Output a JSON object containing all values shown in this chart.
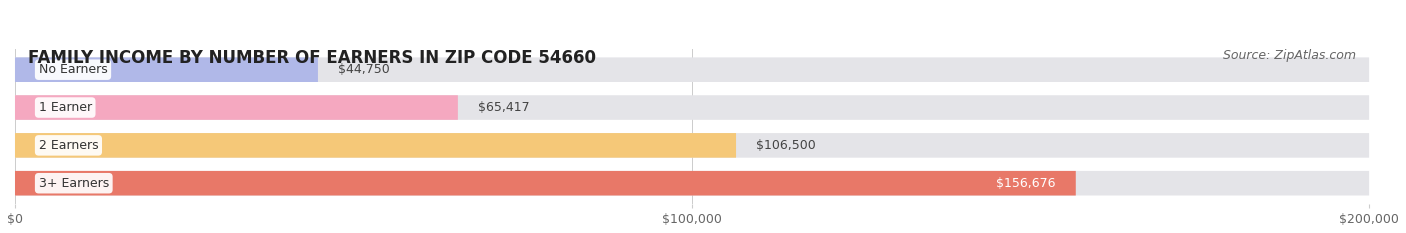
{
  "title": "FAMILY INCOME BY NUMBER OF EARNERS IN ZIP CODE 54660",
  "source": "Source: ZipAtlas.com",
  "categories": [
    "No Earners",
    "1 Earner",
    "2 Earners",
    "3+ Earners"
  ],
  "values": [
    44750,
    65417,
    106500,
    156676
  ],
  "bar_colors": [
    "#b0b8e8",
    "#f5a8c0",
    "#f5c878",
    "#e87868"
  ],
  "bar_bg_color": "#e4e4e8",
  "label_colors": [
    "#555555",
    "#555555",
    "#555555",
    "#ffffff"
  ],
  "xlim": [
    0,
    200000
  ],
  "xticks": [
    0,
    100000,
    200000
  ],
  "xtick_labels": [
    "$0",
    "$100,000",
    "$200,000"
  ],
  "background_color": "#ffffff",
  "title_fontsize": 12,
  "source_fontsize": 9,
  "label_fontsize": 9,
  "tick_fontsize": 9,
  "category_fontsize": 9
}
